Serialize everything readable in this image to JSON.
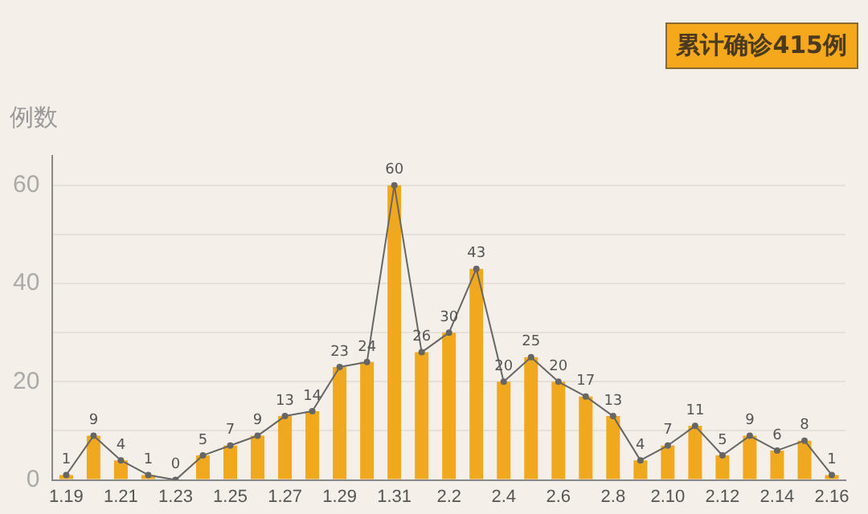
{
  "chart_data": {
    "type": "bar",
    "ylabel": "例数",
    "categories": [
      "1.19",
      null,
      "1.21",
      null,
      "1.23",
      null,
      "1.25",
      null,
      "1.27",
      null,
      "1.29",
      null,
      "1.31",
      null,
      "2.2",
      null,
      "2.4",
      null,
      "2.6",
      null,
      "2.8",
      null,
      "2.10",
      null,
      "2.12",
      null,
      "2.14",
      null,
      "2.16"
    ],
    "series": [
      {
        "color": "#f0a91e",
        "values": [
          1,
          9,
          4,
          1,
          0,
          5,
          7,
          9,
          13,
          14,
          23,
          24,
          60,
          26,
          30,
          43,
          20,
          25,
          20,
          17,
          13,
          4,
          7,
          11,
          5,
          9,
          6,
          8,
          1
        ],
        "value_labels": [
          "1",
          "9",
          "4",
          "1",
          "0",
          "5",
          "7",
          "9",
          "13",
          "14",
          "23",
          "24",
          "60",
          "26",
          "30",
          "43",
          "20",
          "25",
          "20",
          "17",
          "13",
          "4",
          "7",
          "11",
          "5",
          "9",
          "6",
          "8",
          "1"
        ]
      },
      {
        "type": "line",
        "color": "#666666",
        "marker": "circle",
        "values": [
          1,
          9,
          4,
          1,
          0,
          5,
          7,
          9,
          13,
          14,
          23,
          24,
          60,
          26,
          30,
          43,
          20,
          25,
          20,
          17,
          13,
          4,
          7,
          11,
          5,
          9,
          6,
          8,
          1
        ]
      }
    ],
    "ylim": [
      0,
      66
    ],
    "yticks": [
      0,
      {
        "value": 10,
        "label": null
      },
      20,
      {
        "value": 30,
        "label": null
      },
      40,
      {
        "value": 50,
        "label": null
      },
      60
    ],
    "grid": "y",
    "legend": false,
    "annotations": [
      "累计确诊415例"
    ]
  }
}
